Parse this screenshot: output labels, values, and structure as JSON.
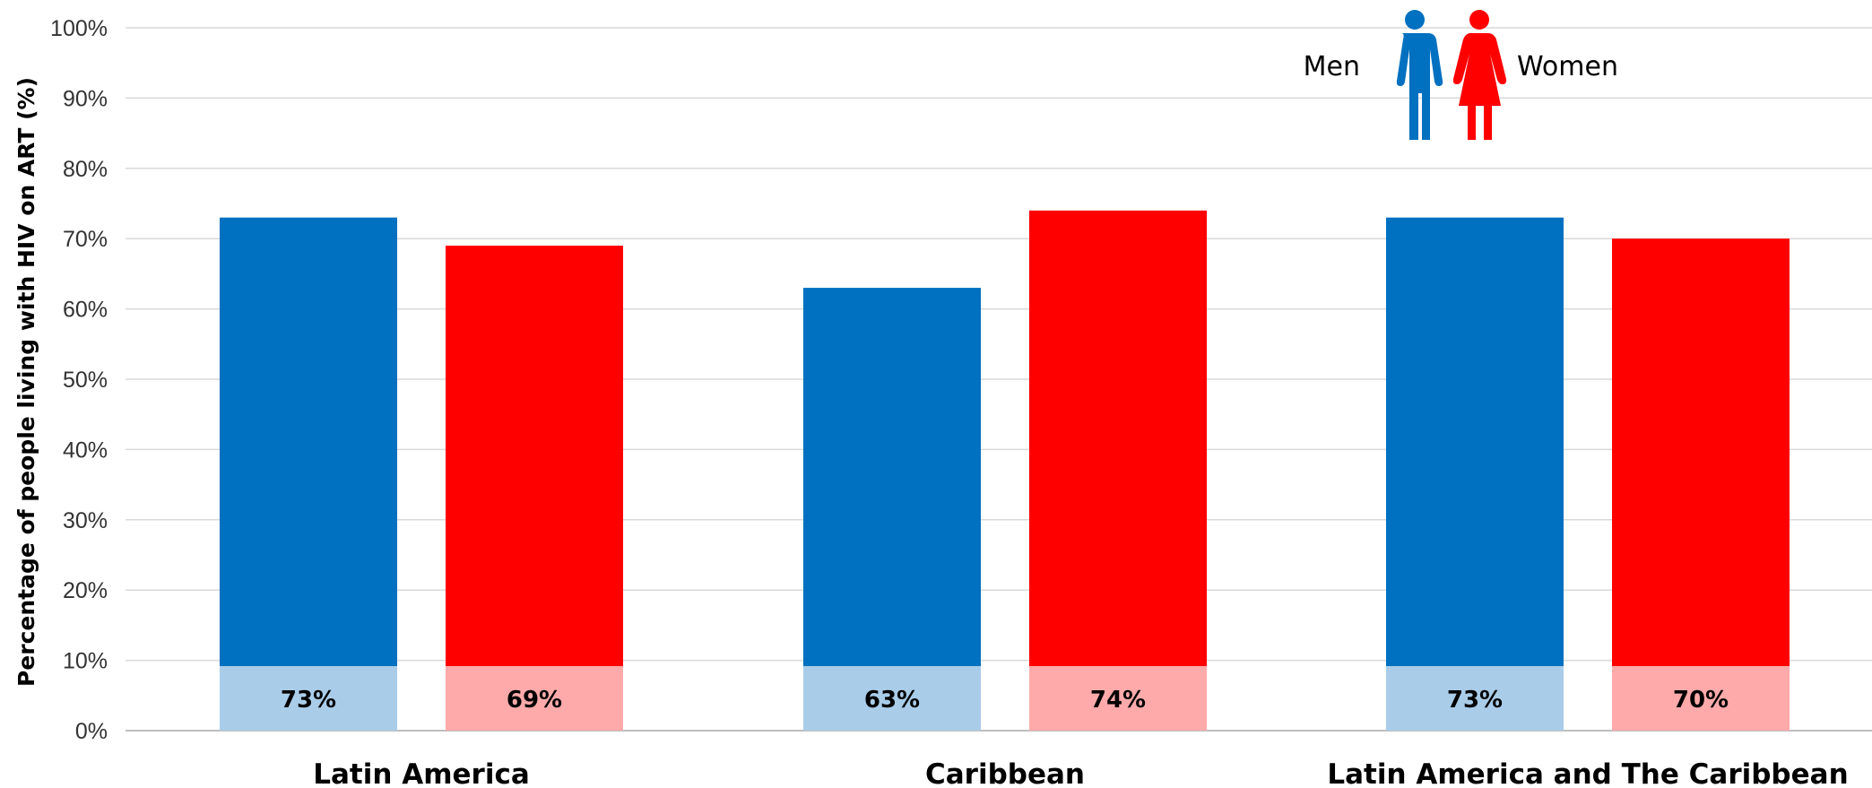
{
  "chart_data": {
    "type": "bar",
    "ylabel": "Percentage of people living with HIV on ART (%)",
    "xlabel": "",
    "ylim": [
      0,
      100
    ],
    "yticks": [
      "0%",
      "10%",
      "20%",
      "30%",
      "40%",
      "50%",
      "60%",
      "70%",
      "80%",
      "90%",
      "100%"
    ],
    "grid": true,
    "categories": [
      "Latin America",
      "Caribbean",
      "Latin America and The Caribbean"
    ],
    "series": [
      {
        "name": "Men",
        "values": [
          73,
          63,
          73
        ],
        "labels": [
          "73%",
          "63%",
          "73%"
        ]
      },
      {
        "name": "Women",
        "values": [
          69,
          74,
          70
        ],
        "labels": [
          "69%",
          "74%",
          "70%"
        ]
      }
    ],
    "legend_position": "top-right",
    "colors": {
      "Men": "#0070C0",
      "Men_label_box": "#A9CCE9",
      "Women": "#FF0000",
      "Women_label_box": "#FFAAAA",
      "grid": "#D9D9D9"
    }
  }
}
